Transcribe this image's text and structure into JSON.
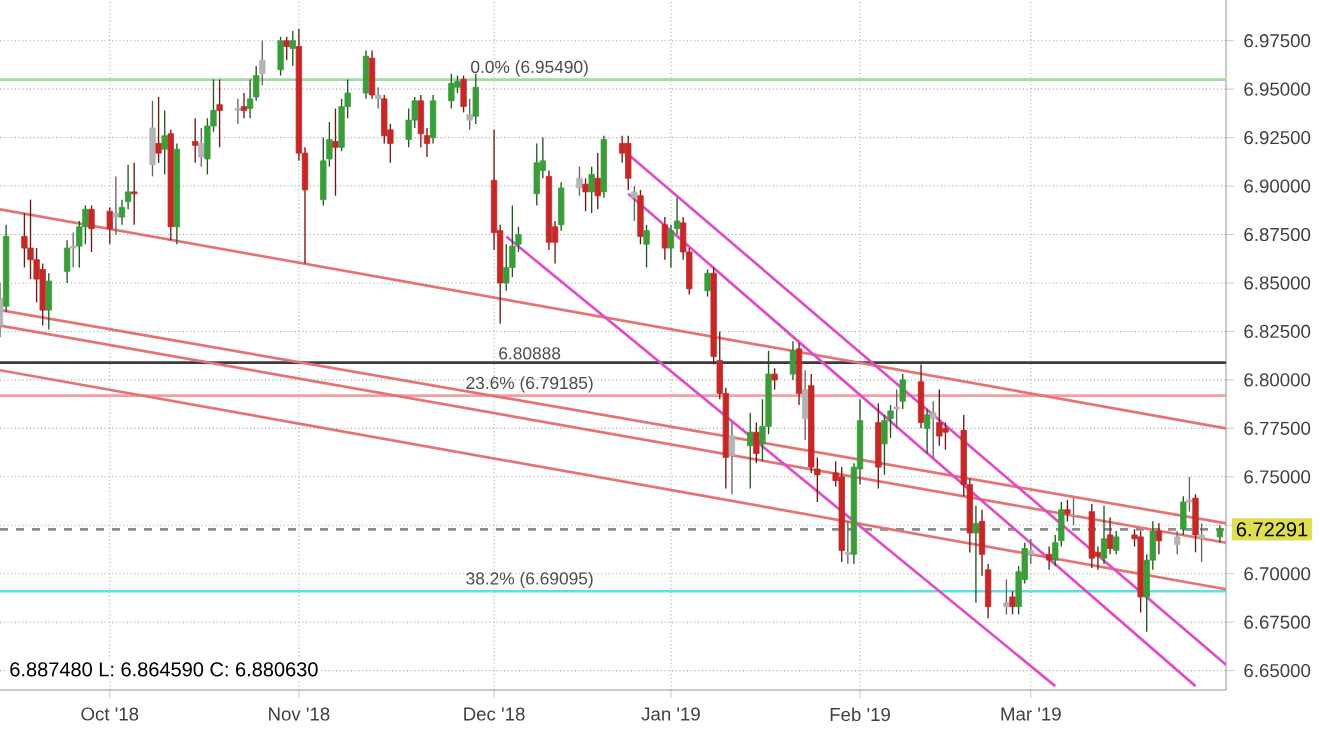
{
  "chart_data": {
    "type": "candlestick",
    "x": [
      "2018-09-13",
      "2018-09-14",
      "2018-09-17",
      "2018-09-18",
      "2018-09-19",
      "2018-09-20",
      "2018-09-21",
      "2018-09-24",
      "2018-09-25",
      "2018-09-26",
      "2018-09-27",
      "2018-09-28",
      "2018-10-01",
      "2018-10-02",
      "2018-10-03",
      "2018-10-04",
      "2018-10-05",
      "2018-10-08",
      "2018-10-09",
      "2018-10-10",
      "2018-10-11",
      "2018-10-12",
      "2018-10-15",
      "2018-10-16",
      "2018-10-17",
      "2018-10-18",
      "2018-10-19",
      "2018-10-22",
      "2018-10-23",
      "2018-10-24",
      "2018-10-25",
      "2018-10-26",
      "2018-10-29",
      "2018-10-30",
      "2018-10-31",
      "2018-11-01",
      "2018-11-02",
      "2018-11-05",
      "2018-11-06",
      "2018-11-07",
      "2018-11-08",
      "2018-11-09",
      "2018-11-12",
      "2018-11-13",
      "2018-11-14",
      "2018-11-15",
      "2018-11-16",
      "2018-11-19",
      "2018-11-20",
      "2018-11-21",
      "2018-11-22",
      "2018-11-23",
      "2018-11-26",
      "2018-11-27",
      "2018-11-28",
      "2018-11-29",
      "2018-11-30",
      "2018-12-03",
      "2018-12-04",
      "2018-12-05",
      "2018-12-06",
      "2018-12-07",
      "2018-12-10",
      "2018-12-11",
      "2018-12-12",
      "2018-12-13",
      "2018-12-14",
      "2018-12-17",
      "2018-12-18",
      "2018-12-19",
      "2018-12-20",
      "2018-12-21",
      "2018-12-24",
      "2018-12-25",
      "2018-12-26",
      "2018-12-27",
      "2018-12-28",
      "2018-12-31",
      "2019-01-01",
      "2019-01-02",
      "2019-01-03",
      "2019-01-04",
      "2019-01-07",
      "2019-01-08",
      "2019-01-09",
      "2019-01-10",
      "2019-01-11",
      "2019-01-14",
      "2019-01-15",
      "2019-01-16",
      "2019-01-17",
      "2019-01-18",
      "2019-01-21",
      "2019-01-22",
      "2019-01-23",
      "2019-01-24",
      "2019-01-25",
      "2019-01-28",
      "2019-01-29",
      "2019-01-30",
      "2019-01-31",
      "2019-02-01",
      "2019-02-04",
      "2019-02-05",
      "2019-02-06",
      "2019-02-07",
      "2019-02-08",
      "2019-02-11",
      "2019-02-12",
      "2019-02-13",
      "2019-02-14",
      "2019-02-15",
      "2019-02-18",
      "2019-02-19",
      "2019-02-20",
      "2019-02-21",
      "2019-02-22",
      "2019-02-25",
      "2019-02-26",
      "2019-02-27",
      "2019-02-28",
      "2019-03-01",
      "2019-03-04",
      "2019-03-05",
      "2019-03-06",
      "2019-03-07",
      "2019-03-08",
      "2019-03-11",
      "2019-03-12",
      "2019-03-13",
      "2019-03-14",
      "2019-03-15",
      "2019-03-18",
      "2019-03-19",
      "2019-03-20",
      "2019-03-21",
      "2019-03-22",
      "2019-03-25",
      "2019-03-26",
      "2019-03-27",
      "2019-03-28",
      "2019-03-29",
      "2019-04-01"
    ],
    "ohlc": [
      [
        6.828,
        6.85,
        6.822,
        6.842
      ],
      [
        6.838,
        6.88,
        6.835,
        6.874
      ],
      [
        6.874,
        6.886,
        6.858,
        6.868
      ],
      [
        6.868,
        6.893,
        6.852,
        6.862
      ],
      [
        6.862,
        6.868,
        6.84,
        6.852
      ],
      [
        6.857,
        6.86,
        6.828,
        6.836
      ],
      [
        6.836,
        6.855,
        6.826,
        6.851
      ],
      [
        6.856,
        6.872,
        6.85,
        6.868
      ],
      [
        6.868,
        6.876,
        6.858,
        6.869
      ],
      [
        6.869,
        6.882,
        6.858,
        6.879
      ],
      [
        6.879,
        6.89,
        6.87,
        6.888
      ],
      [
        6.888,
        6.89,
        6.866,
        6.878
      ],
      [
        6.887,
        6.889,
        6.87,
        6.878
      ],
      [
        6.884,
        6.905,
        6.875,
        6.886
      ],
      [
        6.884,
        6.893,
        6.88,
        6.889
      ],
      [
        6.892,
        6.911,
        6.888,
        6.897
      ],
      [
        6.897,
        6.912,
        6.88,
        6.896
      ],
      [
        6.911,
        6.944,
        6.905,
        6.93
      ],
      [
        6.922,
        6.946,
        6.912,
        6.917
      ],
      [
        6.919,
        6.939,
        6.906,
        6.926
      ],
      [
        6.927,
        6.929,
        6.872,
        6.879
      ],
      [
        6.879,
        6.922,
        6.87,
        6.919
      ],
      [
        6.923,
        6.935,
        6.912,
        6.921
      ],
      [
        6.915,
        6.93,
        6.91,
        6.922
      ],
      [
        6.914,
        6.935,
        6.906,
        6.931
      ],
      [
        6.931,
        6.955,
        6.928,
        6.939
      ],
      [
        6.942,
        6.955,
        6.92,
        6.939
      ],
      [
        6.94,
        6.945,
        6.932,
        6.939
      ],
      [
        6.941,
        6.948,
        6.935,
        6.939
      ],
      [
        6.94,
        6.955,
        6.935,
        6.945
      ],
      [
        6.946,
        6.962,
        6.944,
        6.957
      ],
      [
        6.958,
        6.975,
        6.952,
        6.965
      ],
      [
        6.96,
        6.977,
        6.957,
        6.975
      ],
      [
        6.975,
        6.977,
        6.965,
        6.972
      ],
      [
        6.971,
        6.98,
        6.962,
        6.975
      ],
      [
        6.972,
        6.981,
        6.913,
        6.917
      ],
      [
        6.917,
        6.92,
        6.86,
        6.898
      ],
      [
        6.893,
        6.925,
        6.89,
        6.913
      ],
      [
        6.914,
        6.933,
        6.91,
        6.924
      ],
      [
        6.923,
        6.94,
        6.895,
        6.92
      ],
      [
        6.92,
        6.945,
        6.918,
        6.941
      ],
      [
        6.941,
        6.955,
        6.935,
        6.948
      ],
      [
        6.948,
        6.97,
        6.945,
        6.967
      ],
      [
        6.966,
        6.97,
        6.945,
        6.947
      ],
      [
        6.947,
        6.951,
        6.94,
        6.945
      ],
      [
        6.945,
        6.947,
        6.922,
        6.926
      ],
      [
        6.929,
        6.932,
        6.912,
        6.922
      ],
      [
        6.924,
        6.94,
        6.92,
        6.934
      ],
      [
        6.934,
        6.946,
        6.93,
        6.944
      ],
      [
        6.944,
        6.947,
        6.92,
        6.927
      ],
      [
        6.926,
        6.93,
        6.915,
        6.922
      ],
      [
        6.925,
        6.947,
        6.922,
        6.944
      ],
      [
        6.944,
        6.958,
        6.94,
        6.953
      ],
      [
        6.951,
        6.957,
        6.948,
        6.954
      ],
      [
        6.955,
        6.957,
        6.938,
        6.941
      ],
      [
        6.937,
        6.945,
        6.929,
        6.934
      ],
      [
        6.936,
        6.958,
        6.932,
        6.951
      ],
      [
        6.903,
        6.929,
        6.867,
        6.876
      ],
      [
        6.877,
        6.88,
        6.829,
        6.85
      ],
      [
        6.85,
        6.87,
        6.846,
        6.858
      ],
      [
        6.858,
        6.89,
        6.853,
        6.869
      ],
      [
        6.87,
        6.879,
        6.866,
        6.875
      ],
      [
        6.896,
        6.922,
        6.89,
        6.912
      ],
      [
        6.908,
        6.925,
        6.904,
        6.913
      ],
      [
        6.905,
        6.908,
        6.867,
        6.871
      ],
      [
        6.879,
        6.882,
        6.86,
        6.871
      ],
      [
        6.88,
        6.902,
        6.877,
        6.899
      ],
      [
        6.899,
        6.91,
        6.895,
        6.904
      ],
      [
        6.901,
        6.904,
        6.887,
        6.897
      ],
      [
        6.897,
        6.91,
        6.886,
        6.906
      ],
      [
        6.904,
        6.917,
        6.888,
        6.895
      ],
      [
        6.897,
        6.926,
        6.894,
        6.924
      ],
      [
        6.922,
        6.926,
        6.912,
        6.917
      ],
      [
        6.922,
        6.926,
        6.898,
        6.904
      ],
      [
        6.897,
        6.9,
        6.882,
        6.894
      ],
      [
        6.895,
        6.898,
        6.87,
        6.874
      ],
      [
        6.87,
        6.88,
        6.858,
        6.877
      ],
      [
        6.88,
        6.884,
        6.862,
        6.868
      ],
      [
        6.868,
        6.88,
        6.858,
        6.877
      ],
      [
        6.878,
        6.894,
        6.875,
        6.882
      ],
      [
        6.881,
        6.884,
        6.862,
        6.866
      ],
      [
        6.866,
        6.868,
        6.844,
        6.847
      ],
      [
        6.846,
        6.857,
        6.843,
        6.855
      ],
      [
        6.855,
        6.858,
        6.808,
        6.812
      ],
      [
        6.81,
        6.825,
        6.79,
        6.793
      ],
      [
        6.793,
        6.796,
        6.744,
        6.76
      ],
      [
        6.761,
        6.778,
        6.741,
        6.771
      ],
      [
        6.766,
        6.783,
        6.744,
        6.773
      ],
      [
        6.773,
        6.778,
        6.757,
        6.762
      ],
      [
        6.767,
        6.79,
        6.758,
        6.776
      ],
      [
        6.776,
        6.815,
        6.772,
        6.803
      ],
      [
        6.803,
        6.806,
        6.795,
        6.8
      ],
      [
        6.803,
        6.82,
        6.8,
        6.815
      ],
      [
        6.816,
        6.819,
        6.787,
        6.793
      ],
      [
        6.795,
        6.805,
        6.769,
        6.78
      ],
      [
        6.797,
        6.803,
        6.752,
        6.755
      ],
      [
        6.754,
        6.76,
        6.737,
        6.751
      ],
      [
        6.752,
        6.758,
        6.745,
        6.748
      ],
      [
        6.75,
        6.755,
        6.706,
        6.712
      ],
      [
        6.711,
        6.727,
        6.705,
        6.71
      ],
      [
        6.71,
        6.757,
        6.705,
        6.755
      ],
      [
        6.754,
        6.79,
        6.746,
        6.779
      ],
      [
        6.778,
        6.788,
        6.744,
        6.755
      ],
      [
        6.767,
        6.782,
        6.751,
        6.779
      ],
      [
        6.78,
        6.787,
        6.77,
        6.784
      ],
      [
        6.785,
        6.795,
        6.775,
        6.786
      ],
      [
        6.789,
        6.803,
        6.785,
        6.8
      ],
      [
        6.799,
        6.808,
        6.775,
        6.778
      ],
      [
        6.775,
        6.785,
        6.762,
        6.782
      ],
      [
        6.783,
        6.789,
        6.76,
        6.78
      ],
      [
        6.778,
        6.795,
        6.766,
        6.771
      ],
      [
        6.775,
        6.778,
        6.764,
        6.773
      ],
      [
        6.774,
        6.782,
        6.74,
        6.746
      ],
      [
        6.746,
        6.749,
        6.711,
        6.721
      ],
      [
        6.721,
        6.735,
        6.685,
        6.726
      ],
      [
        6.727,
        6.733,
        6.699,
        6.71
      ],
      [
        6.702,
        6.705,
        6.677,
        6.683
      ],
      [
        6.683,
        6.697,
        6.679,
        6.685
      ],
      [
        6.688,
        6.691,
        6.679,
        6.683
      ],
      [
        6.683,
        6.704,
        6.679,
        6.701
      ],
      [
        6.697,
        6.716,
        6.695,
        6.713
      ],
      [
        6.71,
        6.718,
        6.705,
        6.712
      ],
      [
        6.71,
        6.714,
        6.702,
        6.707
      ],
      [
        6.707,
        6.72,
        6.704,
        6.716
      ],
      [
        6.717,
        6.737,
        6.714,
        6.733
      ],
      [
        6.733,
        6.738,
        6.727,
        6.731
      ],
      [
        6.73,
        6.739,
        6.725,
        6.73
      ],
      [
        6.732,
        6.736,
        6.703,
        6.708
      ],
      [
        6.711,
        6.714,
        6.702,
        6.709
      ],
      [
        6.708,
        6.735,
        6.705,
        6.718
      ],
      [
        6.72,
        6.729,
        6.71,
        6.713
      ],
      [
        6.712,
        6.722,
        6.71,
        6.719
      ],
      [
        6.72,
        6.723,
        6.714,
        6.718
      ],
      [
        6.719,
        6.722,
        6.68,
        6.688
      ],
      [
        6.688,
        6.71,
        6.67,
        6.707
      ],
      [
        6.707,
        6.727,
        6.702,
        6.722
      ],
      [
        6.722,
        6.726,
        6.71,
        6.717
      ],
      [
        6.715,
        6.722,
        6.71,
        6.719
      ],
      [
        6.723,
        6.74,
        6.72,
        6.737
      ],
      [
        6.737,
        6.75,
        6.732,
        6.738
      ],
      [
        6.739,
        6.741,
        6.711,
        6.72
      ],
      [
        6.72,
        6.726,
        6.706,
        6.718
      ],
      [
        6.719,
        6.725,
        6.716,
        6.7229
      ]
    ],
    "colors": [
      "#b4b4b4",
      "#3a9d3a",
      "#c62828",
      "#c62828",
      "#c62828",
      "#c62828",
      "#3a9d3a",
      "#3a9d3a",
      "#b4b4b4",
      "#3a9d3a",
      "#3a9d3a",
      "#c62828",
      "#c62828",
      "#b4b4b4",
      "#3a9d3a",
      "#3a9d3a",
      "#c62828",
      "#b4b4b4",
      "#c62828",
      "#3a9d3a",
      "#c62828",
      "#3a9d3a",
      "#c62828",
      "#b4b4b4",
      "#3a9d3a",
      "#3a9d3a",
      "#c62828",
      "#b4b4b4",
      "#c62828",
      "#3a9d3a",
      "#3a9d3a",
      "#b4b4b4",
      "#3a9d3a",
      "#c62828",
      "#3a9d3a",
      "#c62828",
      "#c62828",
      "#3a9d3a",
      "#3a9d3a",
      "#c62828",
      "#3a9d3a",
      "#3a9d3a",
      "#3a9d3a",
      "#c62828",
      "#b4b4b4",
      "#c62828",
      "#c62828",
      "#3a9d3a",
      "#3a9d3a",
      "#c62828",
      "#c62828",
      "#3a9d3a",
      "#3a9d3a",
      "#3a9d3a",
      "#c62828",
      "#b4b4b4",
      "#3a9d3a",
      "#c62828",
      "#c62828",
      "#3a9d3a",
      "#3a9d3a",
      "#3a9d3a",
      "#3a9d3a",
      "#3a9d3a",
      "#c62828",
      "#c62828",
      "#3a9d3a",
      "#b4b4b4",
      "#c62828",
      "#3a9d3a",
      "#c62828",
      "#3a9d3a",
      "#c62828",
      "#c62828",
      "#b4b4b4",
      "#c62828",
      "#3a9d3a",
      "#c62828",
      "#3a9d3a",
      "#3a9d3a",
      "#c62828",
      "#c62828",
      "#3a9d3a",
      "#c62828",
      "#c62828",
      "#c62828",
      "#b4b4b4",
      "#3a9d3a",
      "#c62828",
      "#3a9d3a",
      "#3a9d3a",
      "#c62828",
      "#3a9d3a",
      "#c62828",
      "#b4b4b4",
      "#c62828",
      "#c62828",
      "#c62828",
      "#c62828",
      "#b4b4b4",
      "#3a9d3a",
      "#3a9d3a",
      "#c62828",
      "#3a9d3a",
      "#3a9d3a",
      "#b4b4b4",
      "#3a9d3a",
      "#c62828",
      "#3a9d3a",
      "#b4b4b4",
      "#c62828",
      "#c62828",
      "#c62828",
      "#c62828",
      "#3a9d3a",
      "#c62828",
      "#c62828",
      "#b4b4b4",
      "#c62828",
      "#3a9d3a",
      "#3a9d3a",
      "#b4b4b4",
      "#c62828",
      "#3a9d3a",
      "#3a9d3a",
      "#c62828",
      "#b4b4b4",
      "#c62828",
      "#c62828",
      "#3a9d3a",
      "#c62828",
      "#3a9d3a",
      "#c62828",
      "#c62828",
      "#3a9d3a",
      "#3a9d3a",
      "#c62828",
      "#b4b4b4",
      "#3a9d3a",
      "#b4b4b4",
      "#c62828",
      "#b4b4b4",
      "#3a9d3a"
    ],
    "series": [
      {
        "type": "line",
        "x": [
          "2018-09-13",
          "2019-04-02"
        ],
        "values": [
          6.888,
          6.775
        ],
        "color": "#e57373"
      },
      {
        "type": "line",
        "x": [
          "2018-09-13",
          "2019-04-02"
        ],
        "values": [
          6.836,
          6.726
        ],
        "color": "#e57373"
      },
      {
        "type": "line",
        "x": [
          "2018-09-13",
          "2019-04-02"
        ],
        "values": [
          6.828,
          6.716
        ],
        "color": "#e57373"
      },
      {
        "type": "line",
        "x": [
          "2018-09-13",
          "2019-04-02"
        ],
        "values": [
          6.805,
          6.692
        ],
        "color": "#e57373"
      },
      {
        "type": "line",
        "x": [
          "2018-12-24",
          "2019-04-02"
        ],
        "values": [
          6.919,
          6.653
        ],
        "color": "#e04cc8"
      },
      {
        "type": "line",
        "x": [
          "2018-12-25",
          "2019-03-28"
        ],
        "values": [
          6.896,
          6.642
        ],
        "color": "#e04cc8"
      },
      {
        "type": "line",
        "x": [
          "2018-12-05",
          "2019-03-05"
        ],
        "values": [
          6.874,
          6.642
        ],
        "color": "#e04cc8"
      }
    ],
    "xlim": [
      "2018-09-13",
      "2019-04-02"
    ],
    "xticks": [
      {
        "value": "2018-10-01",
        "label": "Oct '18"
      },
      {
        "value": "2018-11-01",
        "label": "Nov '18"
      },
      {
        "value": "2018-12-03",
        "label": "Dec '18"
      },
      {
        "value": "2019-01-01",
        "label": "Jan '19"
      },
      {
        "value": "2019-02-01",
        "label": "Feb '19"
      },
      {
        "value": "2019-03-01",
        "label": "Mar '19"
      }
    ],
    "ylim": [
      6.64,
      6.996
    ],
    "yticks": [
      {
        "value": 6.65,
        "label": "6.65000"
      },
      {
        "value": 6.675,
        "label": "6.67500"
      },
      {
        "value": 6.7,
        "label": "6.70000"
      },
      {
        "value": 6.725,
        "label": null
      },
      {
        "value": 6.75,
        "label": "6.75000"
      },
      {
        "value": 6.775,
        "label": "6.77500"
      },
      {
        "value": 6.8,
        "label": "6.80000"
      },
      {
        "value": 6.825,
        "label": "6.82500"
      },
      {
        "value": 6.85,
        "label": "6.85000"
      },
      {
        "value": 6.875,
        "label": "6.87500"
      },
      {
        "value": 6.9,
        "label": "6.90000"
      },
      {
        "value": 6.925,
        "label": "6.92500"
      },
      {
        "value": 6.95,
        "label": "6.95000"
      },
      {
        "value": 6.975,
        "label": "6.97500"
      }
    ],
    "ref_lines": [
      {
        "axis": "y",
        "value": 6.9549,
        "label": "0.0% (6.95490)",
        "color": "#9fdc9f"
      },
      {
        "axis": "y",
        "value": 6.80888,
        "label": "6.80888",
        "color": "#3c3c3c"
      },
      {
        "axis": "y",
        "value": 6.79185,
        "label": "23.6% (6.79185)",
        "color": "#f2a0a0"
      },
      {
        "axis": "y",
        "value": 6.69095,
        "label": "38.2% (6.69095)",
        "color": "#5ce1e6"
      },
      {
        "axis": "y",
        "value": 6.72291,
        "label": "6.72291",
        "color": "#8c8c8c",
        "line_style": "dashed"
      }
    ],
    "annotations": [
      "6.887480 L: 6.864590 C: 6.880630"
    ],
    "grid": true
  }
}
